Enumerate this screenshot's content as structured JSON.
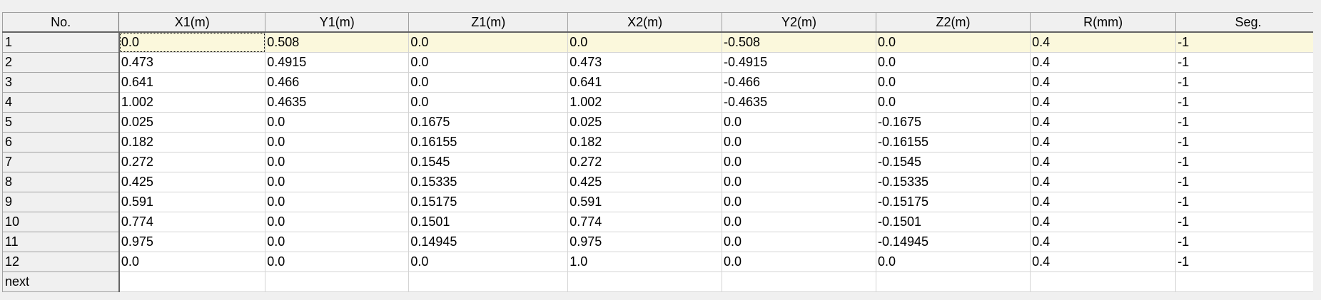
{
  "table": {
    "columns": [
      "No.",
      "X1(m)",
      "Y1(m)",
      "Z1(m)",
      "X2(m)",
      "Y2(m)",
      "Z2(m)",
      "R(mm)",
      "Seg."
    ],
    "rows": [
      [
        "1",
        "0.0",
        "0.508",
        "0.0",
        "0.0",
        "-0.508",
        "0.0",
        "0.4",
        "-1"
      ],
      [
        "2",
        "0.473",
        "0.4915",
        "0.0",
        "0.473",
        "-0.4915",
        "0.0",
        "0.4",
        "-1"
      ],
      [
        "3",
        "0.641",
        "0.466",
        "0.0",
        "0.641",
        "-0.466",
        "0.0",
        "0.4",
        "-1"
      ],
      [
        "4",
        "1.002",
        "0.4635",
        "0.0",
        "1.002",
        "-0.4635",
        "0.0",
        "0.4",
        "-1"
      ],
      [
        "5",
        "0.025",
        "0.0",
        "0.1675",
        "0.025",
        "0.0",
        "-0.1675",
        "0.4",
        "-1"
      ],
      [
        "6",
        "0.182",
        "0.0",
        "0.16155",
        "0.182",
        "0.0",
        "-0.16155",
        "0.4",
        "-1"
      ],
      [
        "7",
        "0.272",
        "0.0",
        "0.1545",
        "0.272",
        "0.0",
        "-0.1545",
        "0.4",
        "-1"
      ],
      [
        "8",
        "0.425",
        "0.0",
        "0.15335",
        "0.425",
        "0.0",
        "-0.15335",
        "0.4",
        "-1"
      ],
      [
        "9",
        "0.591",
        "0.0",
        "0.15175",
        "0.591",
        "0.0",
        "-0.15175",
        "0.4",
        "-1"
      ],
      [
        "10",
        "0.774",
        "0.0",
        "0.1501",
        "0.774",
        "0.0",
        "-0.1501",
        "0.4",
        "-1"
      ],
      [
        "11",
        "0.975",
        "0.0",
        "0.14945",
        "0.975",
        "0.0",
        "-0.14945",
        "0.4",
        "-1"
      ],
      [
        "12",
        "0.0",
        "0.0",
        "0.0",
        "1.0",
        "0.0",
        "0.0",
        "0.4",
        "-1"
      ]
    ],
    "next_row_label": "next",
    "selected_row_index": 0,
    "colors": {
      "selected_row_bg": "#fbf8dc",
      "header_bg": "#f0f0f0",
      "cell_bg": "#ffffff",
      "grid_line": "#d4d4d4"
    }
  }
}
